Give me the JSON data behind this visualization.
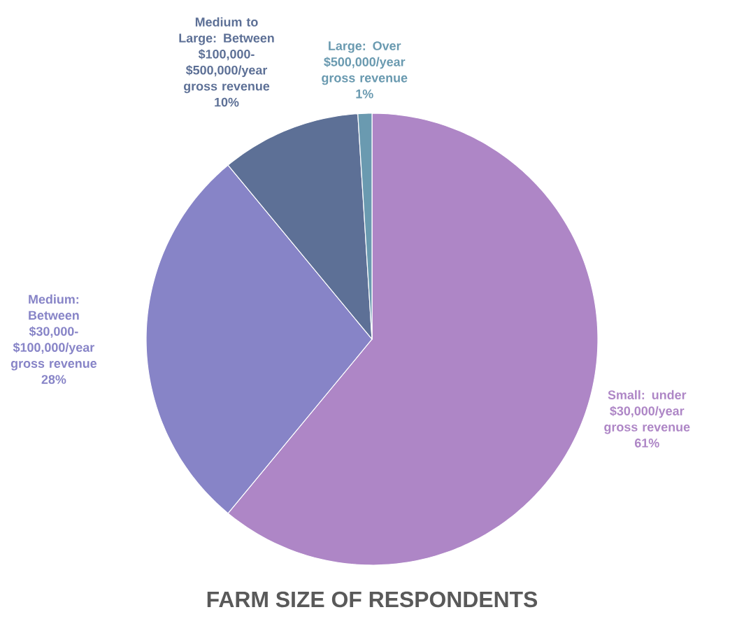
{
  "chart_data": {
    "type": "pie",
    "title": "FARM SIZE OF RESPONDENTS",
    "categories": [
      "Small: under $30,000/year gross revenue",
      "Medium: Between $30,000-$100,000/year gross revenue",
      "Medium to Large: Between $100,000-$500,000/year gross revenue",
      "Large: Over $500,000/year gross revenue"
    ],
    "values": [
      61,
      28,
      10,
      1
    ],
    "value_labels": [
      "61%",
      "28%",
      "10%",
      "1%"
    ],
    "colors": [
      "#ae86c6",
      "#8784c7",
      "#5d7096",
      "#6a9ab0"
    ]
  }
}
